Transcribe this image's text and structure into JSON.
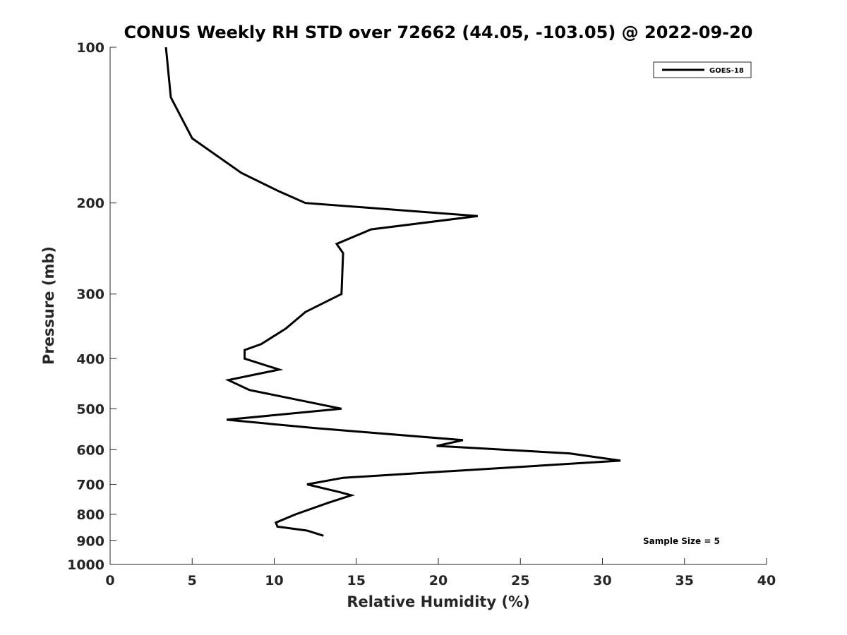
{
  "chart_data": {
    "type": "line",
    "title": "CONUS Weekly RH STD over 72662 (44.05, -103.05) @ 2022-09-20",
    "xlabel": "Relative Humidity (%)",
    "ylabel": "Pressure (mb)",
    "xlim": [
      0,
      40
    ],
    "ylim": [
      100,
      1000
    ],
    "y_scale": "log",
    "y_reversed": true,
    "x_ticks": [
      "0",
      "5",
      "10",
      "15",
      "20",
      "25",
      "30",
      "35",
      "40"
    ],
    "y_ticks": [
      "100",
      "200",
      "300",
      "400",
      "500",
      "600",
      "700",
      "800",
      "900",
      "1000"
    ],
    "grid": false,
    "legend_position": "top-right",
    "series": [
      {
        "name": "GOES-18",
        "color": "#000000",
        "points": [
          [
            3.4,
            100
          ],
          [
            3.7,
            125
          ],
          [
            5.0,
            150
          ],
          [
            8.0,
            175
          ],
          [
            10.3,
            190
          ],
          [
            11.9,
            200
          ],
          [
            22.4,
            212
          ],
          [
            15.9,
            225
          ],
          [
            13.8,
            240
          ],
          [
            14.2,
            250
          ],
          [
            14.1,
            300
          ],
          [
            11.9,
            325
          ],
          [
            10.7,
            350
          ],
          [
            9.2,
            375
          ],
          [
            8.2,
            385
          ],
          [
            8.2,
            400
          ],
          [
            10.3,
            420
          ],
          [
            7.2,
            440
          ],
          [
            8.5,
            460
          ],
          [
            14.1,
            500
          ],
          [
            7.1,
            525
          ],
          [
            12.5,
            545
          ],
          [
            21.5,
            575
          ],
          [
            19.9,
            590
          ],
          [
            28.0,
            610
          ],
          [
            31.1,
            630
          ],
          [
            14.2,
            680
          ],
          [
            12.0,
            700
          ],
          [
            14.0,
            725
          ],
          [
            14.7,
            735
          ],
          [
            13.3,
            760
          ],
          [
            11.3,
            800
          ],
          [
            10.1,
            830
          ],
          [
            10.2,
            845
          ],
          [
            12.0,
            860
          ],
          [
            13.0,
            880
          ]
        ]
      }
    ],
    "annotation": "Sample Size = 5"
  }
}
